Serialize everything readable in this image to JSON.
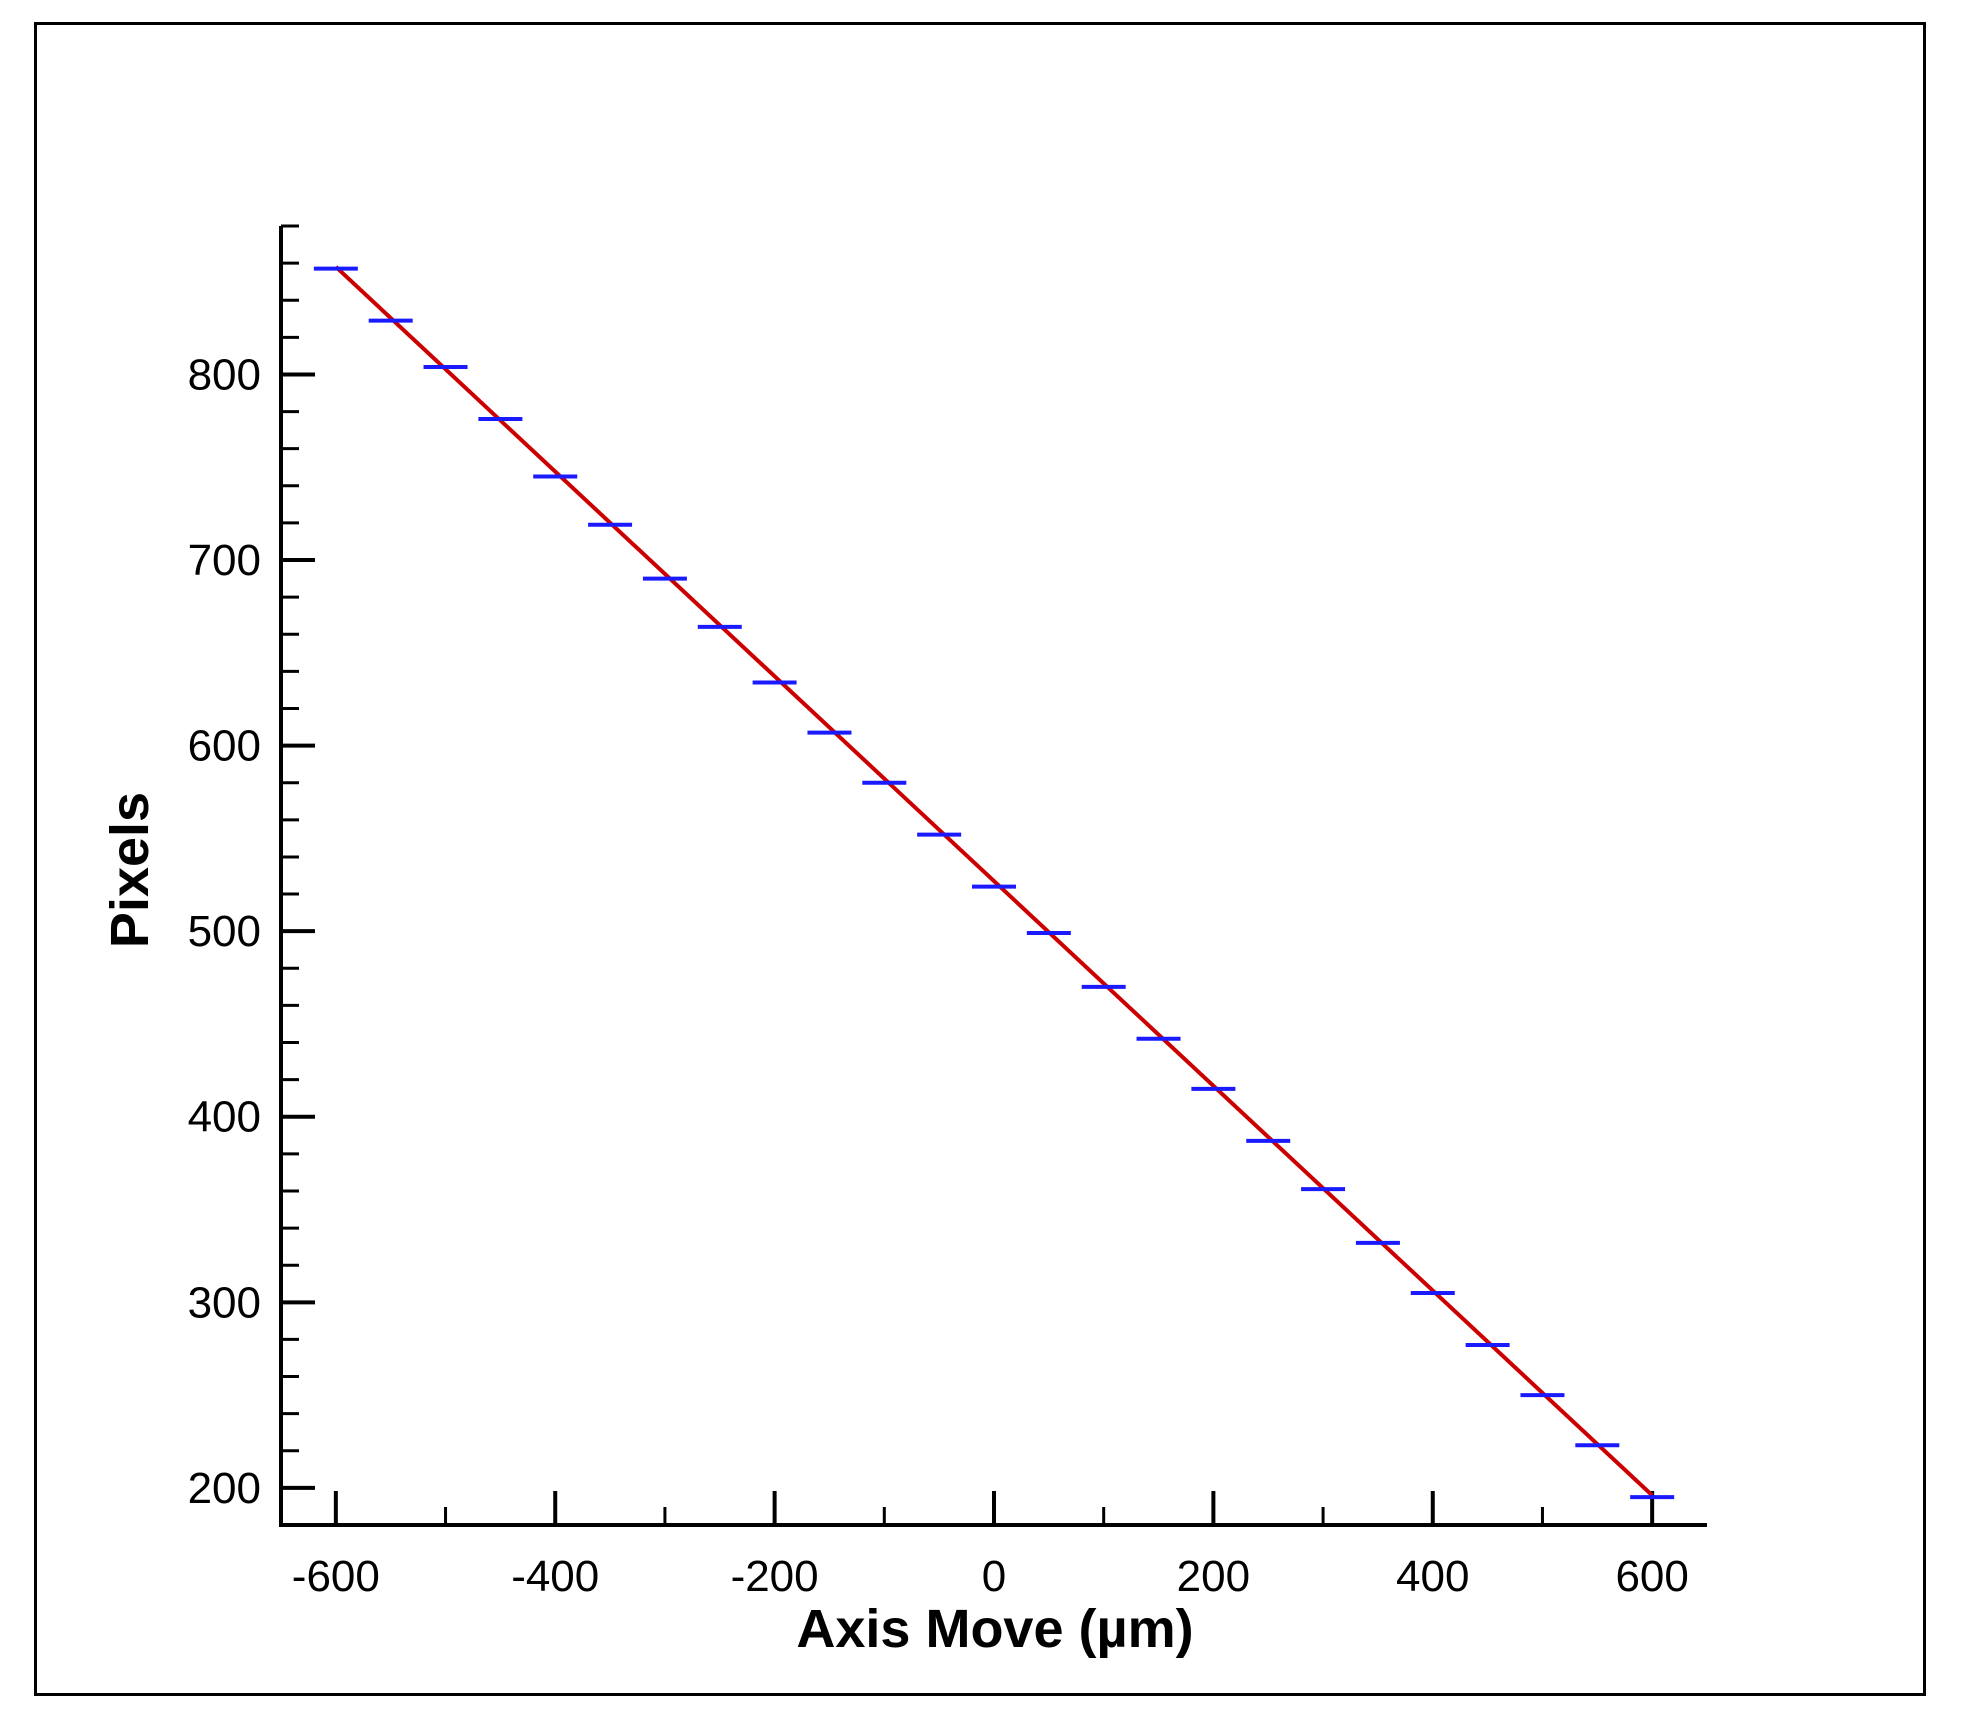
{
  "chart_data": {
    "type": "scatter",
    "title": "",
    "xlabel": "Axis Move (µm)",
    "ylabel": "Pixels",
    "xlim": [
      -650,
      650
    ],
    "ylim": [
      180,
      880
    ],
    "x_ticks": [
      "-600",
      "-400",
      "-200",
      "0",
      "200",
      "400",
      "600"
    ],
    "y_ticks": [
      "200",
      "300",
      "400",
      "500",
      "600",
      "700",
      "800"
    ],
    "grid": false,
    "legend": "none",
    "colors": {
      "points": "#1a1aff",
      "fit": "#cc0000",
      "axes": "#000000"
    },
    "marker": "horizontal-dash",
    "series": [
      {
        "x": [
          -600,
          -550,
          -500,
          -450,
          -400,
          -350,
          -300,
          -250,
          -200,
          -150,
          -100,
          -50,
          0,
          50,
          100,
          150,
          200,
          250,
          300,
          350,
          400,
          450,
          500,
          550,
          600
        ],
        "y": [
          857,
          829,
          804,
          776,
          745,
          719,
          690,
          664,
          634,
          607,
          580,
          552,
          524,
          499,
          470,
          442,
          415,
          387,
          361,
          332,
          305,
          277,
          250,
          223,
          195
        ]
      }
    ],
    "fit_line": {
      "x": [
        -600,
        600
      ],
      "y": [
        858,
        196
      ]
    }
  }
}
